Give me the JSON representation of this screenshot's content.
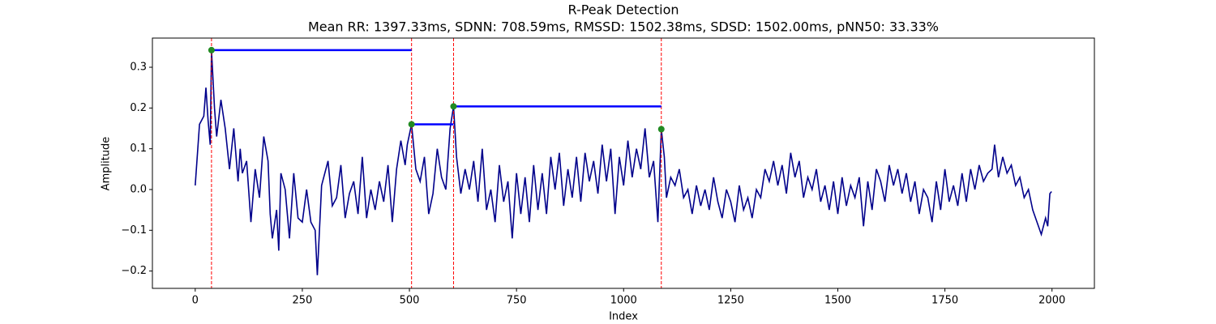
{
  "chart_data": {
    "type": "line",
    "title": "R-Peak Detection",
    "subtitle": "Mean RR: 1397.33ms, SDNN: 708.59ms, RMSSD: 1502.38ms, SDSD: 1502.00ms, pNN50: 33.33%",
    "x_label": "Index",
    "y_label": "Amplitude",
    "x": [
      0,
      10,
      20,
      25,
      30,
      35,
      38,
      45,
      50,
      60,
      70,
      80,
      90,
      100,
      105,
      110,
      120,
      130,
      140,
      150,
      160,
      170,
      175,
      180,
      190,
      195,
      200,
      210,
      220,
      230,
      240,
      250,
      260,
      270,
      280,
      285,
      295,
      310,
      320,
      330,
      340,
      350,
      360,
      370,
      380,
      390,
      400,
      410,
      420,
      430,
      440,
      450,
      460,
      470,
      480,
      490,
      495,
      505,
      515,
      525,
      535,
      545,
      555,
      565,
      575,
      585,
      595,
      603,
      610,
      620,
      630,
      640,
      650,
      660,
      670,
      680,
      690,
      700,
      710,
      720,
      730,
      740,
      750,
      760,
      770,
      780,
      790,
      800,
      810,
      820,
      830,
      840,
      850,
      860,
      870,
      880,
      890,
      900,
      910,
      920,
      930,
      940,
      950,
      960,
      970,
      980,
      990,
      1000,
      1010,
      1020,
      1030,
      1040,
      1050,
      1060,
      1070,
      1080,
      1088,
      1095,
      1100,
      1110,
      1120,
      1130,
      1140,
      1150,
      1160,
      1170,
      1180,
      1190,
      1200,
      1210,
      1220,
      1230,
      1240,
      1250,
      1260,
      1270,
      1280,
      1290,
      1300,
      1310,
      1320,
      1330,
      1340,
      1350,
      1360,
      1370,
      1380,
      1390,
      1400,
      1410,
      1420,
      1430,
      1440,
      1450,
      1460,
      1470,
      1480,
      1490,
      1500,
      1510,
      1520,
      1530,
      1540,
      1550,
      1560,
      1570,
      1580,
      1590,
      1600,
      1610,
      1620,
      1630,
      1640,
      1650,
      1660,
      1670,
      1680,
      1690,
      1700,
      1710,
      1720,
      1730,
      1740,
      1750,
      1760,
      1770,
      1780,
      1790,
      1800,
      1810,
      1820,
      1830,
      1840,
      1850,
      1860,
      1866,
      1875,
      1885,
      1895,
      1905,
      1915,
      1925,
      1935,
      1945,
      1955,
      1965,
      1975,
      1985,
      1990,
      1995,
      1999
    ],
    "series": [
      {
        "color": "#00008b",
        "values": [
          0.01,
          0.16,
          0.18,
          0.25,
          0.17,
          0.11,
          0.342,
          0.2,
          0.13,
          0.22,
          0.15,
          0.05,
          0.15,
          0.02,
          0.1,
          0.04,
          0.07,
          -0.08,
          0.05,
          -0.02,
          0.13,
          0.07,
          -0.06,
          -0.12,
          -0.05,
          -0.15,
          0.04,
          0.0,
          -0.12,
          0.04,
          -0.07,
          -0.08,
          0.0,
          -0.08,
          -0.1,
          -0.21,
          0.01,
          0.07,
          -0.04,
          -0.02,
          0.06,
          -0.07,
          -0.01,
          0.02,
          -0.06,
          0.08,
          -0.07,
          0.0,
          -0.05,
          0.02,
          -0.03,
          0.06,
          -0.08,
          0.05,
          0.12,
          0.06,
          0.11,
          0.16,
          0.05,
          0.02,
          0.08,
          -0.06,
          -0.01,
          0.1,
          0.03,
          0.0,
          0.15,
          0.204,
          0.08,
          -0.01,
          0.05,
          0.0,
          0.07,
          -0.03,
          0.1,
          -0.05,
          0.0,
          -0.08,
          0.06,
          -0.03,
          0.02,
          -0.12,
          0.04,
          -0.06,
          0.03,
          -0.08,
          0.06,
          -0.05,
          0.04,
          -0.06,
          0.08,
          0.0,
          0.09,
          -0.04,
          0.05,
          -0.02,
          0.08,
          -0.03,
          0.09,
          0.02,
          0.07,
          -0.01,
          0.11,
          0.02,
          0.1,
          -0.06,
          0.08,
          0.01,
          0.12,
          0.03,
          0.1,
          0.05,
          0.15,
          0.03,
          0.07,
          -0.08,
          0.148,
          0.08,
          -0.02,
          0.03,
          0.01,
          0.05,
          -0.02,
          0.0,
          -0.06,
          0.01,
          -0.04,
          0.0,
          -0.05,
          0.03,
          -0.03,
          -0.07,
          0.0,
          -0.03,
          -0.08,
          0.01,
          -0.05,
          -0.02,
          -0.07,
          0.0,
          -0.02,
          0.05,
          0.02,
          0.07,
          0.01,
          0.06,
          -0.01,
          0.09,
          0.03,
          0.07,
          -0.02,
          0.03,
          0.0,
          0.05,
          -0.03,
          0.01,
          -0.05,
          0.02,
          -0.06,
          0.03,
          -0.04,
          0.01,
          -0.02,
          0.03,
          -0.09,
          0.02,
          -0.05,
          0.05,
          0.02,
          -0.03,
          0.06,
          0.01,
          0.05,
          -0.01,
          0.04,
          -0.03,
          0.02,
          -0.06,
          0.0,
          -0.02,
          -0.08,
          0.02,
          -0.05,
          0.05,
          -0.03,
          0.01,
          -0.04,
          0.04,
          -0.03,
          0.05,
          0.0,
          0.06,
          0.02,
          0.04,
          0.05,
          0.11,
          0.03,
          0.08,
          0.04,
          0.06,
          0.01,
          0.03,
          -0.02,
          0.0,
          -0.05,
          -0.08,
          -0.11,
          -0.07,
          -0.09,
          -0.01,
          -0.005
        ]
      }
    ],
    "peaks": {
      "x": [
        38,
        505,
        603,
        1088
      ],
      "values": [
        0.342,
        0.16,
        0.204,
        0.148
      ],
      "color": "#228b22"
    },
    "peak_line_color": "#ff0000",
    "interval_color": "#0000ff",
    "xlim": [
      -99.95,
      2098.95
    ],
    "ylim": [
      -0.2425,
      0.3716
    ],
    "xticks": [
      0,
      250,
      500,
      750,
      1000,
      1250,
      1500,
      1750,
      2000
    ],
    "yticks": [
      {
        "value": -0.2,
        "label": "−0.2"
      },
      {
        "value": -0.1,
        "label": "−0.1"
      },
      {
        "value": 0,
        "label": "0.0"
      },
      0.1,
      0.2,
      0.3
    ]
  }
}
